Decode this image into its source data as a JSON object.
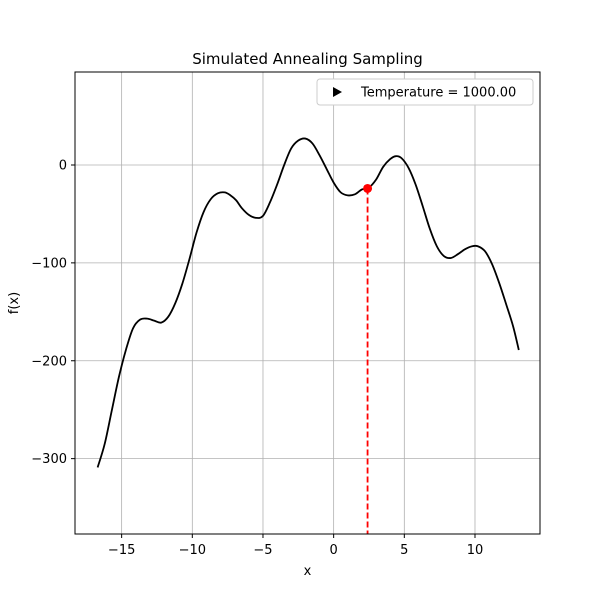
{
  "chart_data": {
    "type": "line",
    "title": "Simulated Annealing Sampling",
    "xlabel": "x",
    "ylabel": "f(x)",
    "xlim": [
      -18.3,
      14.6
    ],
    "ylim": [
      -377,
      95
    ],
    "xticks": [
      -15,
      -10,
      -5,
      0,
      5,
      10
    ],
    "yticks": [
      -300,
      -200,
      -100,
      0
    ],
    "xtick_labels": [
      "−15",
      "−10",
      "−5",
      "0",
      "5",
      "10"
    ],
    "ytick_labels": [
      "−300",
      "−200",
      "−100",
      "0"
    ],
    "grid": true,
    "legend": {
      "placement": "top-right",
      "entries": [
        {
          "label": "Temperature = 1000.00",
          "marker": "triangle-right",
          "color": "#000000"
        }
      ]
    },
    "series": [
      {
        "color": "#000000",
        "x": [
          -16.7,
          -16.2,
          -15.7,
          -15.2,
          -14.7,
          -14.2,
          -13.7,
          -13.2,
          -12.7,
          -12.2,
          -11.7,
          -11.2,
          -10.7,
          -10.2,
          -9.7,
          -9.2,
          -8.7,
          -8.2,
          -7.7,
          -7.3,
          -6.9,
          -6.5,
          -6.0,
          -5.5,
          -5.0,
          -4.5,
          -4.0,
          -3.5,
          -3.0,
          -2.5,
          -2.0,
          -1.5,
          -1.0,
          -0.5,
          0.0,
          0.5,
          1.0,
          1.5,
          2.0,
          2.5,
          3.0,
          3.5,
          4.0,
          4.4,
          4.8,
          5.3,
          5.8,
          6.3,
          6.8,
          7.3,
          7.8,
          8.3,
          8.8,
          9.3,
          9.8,
          10.2,
          10.7,
          11.2,
          11.7,
          12.2,
          12.7,
          13.1
        ],
        "y": [
          -309,
          -285,
          -251,
          -217,
          -189,
          -167,
          -158,
          -157,
          -159,
          -161,
          -155,
          -141,
          -121,
          -96,
          -69,
          -48,
          -35,
          -29,
          -28,
          -31,
          -36,
          -44,
          -51,
          -54,
          -52,
          -38,
          -20,
          0,
          17,
          25,
          27,
          22,
          10,
          -4,
          -18,
          -28,
          -31,
          -30,
          -25,
          -23,
          -15,
          -2,
          6,
          9,
          7,
          -3,
          -20,
          -42,
          -65,
          -83,
          -93,
          -95,
          -91,
          -86,
          -83,
          -83,
          -88,
          -101,
          -120,
          -142,
          -165,
          -189
        ]
      }
    ],
    "highlight": {
      "x": 2.4,
      "y": -24,
      "color": "#ff0000",
      "line_style": "dashed"
    }
  }
}
